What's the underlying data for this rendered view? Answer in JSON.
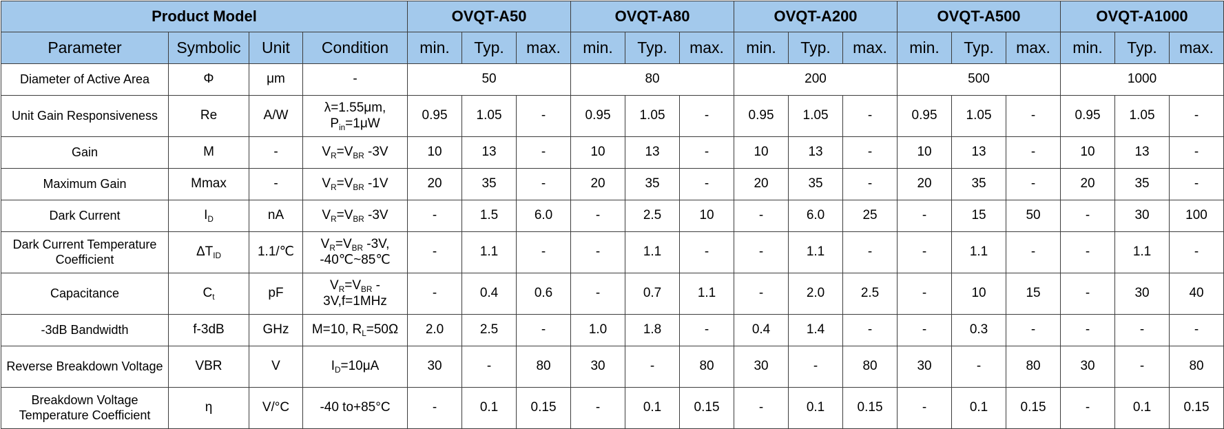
{
  "header": {
    "product_model_label": "Product Model",
    "models": [
      "OVQT-A50",
      "OVQT-A80",
      "OVQT-A200",
      "OVQT-A500",
      "OVQT-A1000"
    ],
    "parameter_label": "Parameter",
    "symbolic_label": "Symbolic",
    "unit_label": "Unit",
    "condition_label": "Condition",
    "sub_columns": [
      "min.",
      "Typ.",
      "max."
    ]
  },
  "rows": [
    {
      "parameter": "Diameter of Active Area",
      "symbol": [
        {
          "t": "Φ"
        }
      ],
      "unit": "μm",
      "condition": [
        [
          {
            "t": "-"
          }
        ]
      ],
      "merged": [
        "50",
        "80",
        "200",
        "500",
        "1000"
      ],
      "tall": false
    },
    {
      "parameter": "Unit Gain Responsiveness",
      "symbol": [
        {
          "t": "Re"
        }
      ],
      "unit": "A/W",
      "condition": [
        [
          {
            "t": "λ=1.55μm,"
          }
        ],
        [
          {
            "t": "P"
          },
          {
            "s": "in"
          },
          {
            "t": "=1μW"
          }
        ]
      ],
      "values": [
        "0.95",
        "1.05",
        "-",
        "0.95",
        "1.05",
        "-",
        "0.95",
        "1.05",
        "-",
        "0.95",
        "1.05",
        "-",
        "0.95",
        "1.05",
        "-"
      ],
      "tall": true
    },
    {
      "parameter": "Gain",
      "symbol": [
        {
          "t": "M"
        }
      ],
      "unit": "-",
      "condition": [
        [
          {
            "t": "V"
          },
          {
            "s": "R"
          },
          {
            "t": "=V"
          },
          {
            "s": "BR"
          },
          {
            "t": " -3V"
          }
        ]
      ],
      "values": [
        "10",
        "13",
        "-",
        "10",
        "13",
        "-",
        "10",
        "13",
        "-",
        "10",
        "13",
        "-",
        "10",
        "13",
        "-"
      ],
      "tall": false
    },
    {
      "parameter": "Maximum Gain",
      "symbol": [
        {
          "t": "Mmax"
        }
      ],
      "unit": "-",
      "condition": [
        [
          {
            "t": "V"
          },
          {
            "s": "R"
          },
          {
            "t": "=V"
          },
          {
            "s": "BR"
          },
          {
            "t": " -1V"
          }
        ]
      ],
      "values": [
        "20",
        "35",
        "-",
        "20",
        "35",
        "-",
        "20",
        "35",
        "-",
        "20",
        "35",
        "-",
        "20",
        "35",
        "-"
      ],
      "tall": false
    },
    {
      "parameter": "Dark Current",
      "symbol": [
        {
          "t": "I"
        },
        {
          "s": "D"
        }
      ],
      "unit": "nA",
      "condition": [
        [
          {
            "t": "V"
          },
          {
            "s": "R"
          },
          {
            "t": "=V"
          },
          {
            "s": "BR"
          },
          {
            "t": " -3V"
          }
        ]
      ],
      "values": [
        "-",
        "1.5",
        "6.0",
        "-",
        "2.5",
        "10",
        "-",
        "6.0",
        "25",
        "-",
        "15",
        "50",
        "-",
        "30",
        "100"
      ],
      "tall": false
    },
    {
      "parameter": "Dark Current Temperature Coefficient",
      "symbol": [
        {
          "t": "ΔT"
        },
        {
          "s": "ID"
        }
      ],
      "unit": "1.1/℃",
      "condition": [
        [
          {
            "t": "V"
          },
          {
            "s": "R"
          },
          {
            "t": "=V"
          },
          {
            "s": "BR"
          },
          {
            "t": " -3V,"
          }
        ],
        [
          {
            "t": "-40℃~85℃"
          }
        ]
      ],
      "values": [
        "-",
        "1.1",
        "-",
        "-",
        "1.1",
        "-",
        "-",
        "1.1",
        "-",
        "-",
        "1.1",
        "-",
        "-",
        "1.1",
        "-"
      ],
      "tall": true
    },
    {
      "parameter": "Capacitance",
      "symbol": [
        {
          "t": "C"
        },
        {
          "s": "t"
        }
      ],
      "unit": "pF",
      "condition": [
        [
          {
            "t": "V"
          },
          {
            "s": "R"
          },
          {
            "t": "=V"
          },
          {
            "s": "BR"
          },
          {
            "t": " -"
          }
        ],
        [
          {
            "t": "3V,f=1MHz"
          }
        ]
      ],
      "values": [
        "-",
        "0.4",
        "0.6",
        "-",
        "0.7",
        "1.1",
        "-",
        "2.0",
        "2.5",
        "-",
        "10",
        "15",
        "-",
        "30",
        "40"
      ],
      "tall": true
    },
    {
      "parameter": "-3dB Bandwidth",
      "symbol": [
        {
          "t": "f-3dB"
        }
      ],
      "unit": "GHz",
      "condition": [
        [
          {
            "t": "M=10, R"
          },
          {
            "s": "L"
          },
          {
            "t": "=50Ω"
          }
        ]
      ],
      "values": [
        "2.0",
        "2.5",
        "-",
        "1.0",
        "1.8",
        "-",
        "0.4",
        "1.4",
        "-",
        "-",
        "0.3",
        "-",
        "-",
        "-",
        "-"
      ],
      "tall": false
    },
    {
      "parameter": "Reverse Breakdown Voltage",
      "symbol": [
        {
          "t": "VBR"
        }
      ],
      "unit": "V",
      "condition": [
        [
          {
            "t": "I"
          },
          {
            "s": "D"
          },
          {
            "t": "=10μA"
          }
        ]
      ],
      "values": [
        "30",
        "-",
        "80",
        "30",
        "-",
        "80",
        "30",
        "-",
        "80",
        "30",
        "-",
        "80",
        "30",
        "-",
        "80"
      ],
      "tall": true
    },
    {
      "parameter": "Breakdown Voltage Temperature Coefficient",
      "symbol": [
        {
          "t": "η"
        }
      ],
      "unit": "V/°C",
      "condition": [
        [
          {
            "t": "-40 to+85°C"
          }
        ]
      ],
      "values": [
        "-",
        "0.1",
        "0.15",
        "-",
        "0.1",
        "0.15",
        "-",
        "0.1",
        "0.15",
        "-",
        "0.1",
        "0.15",
        "-",
        "0.1",
        "0.15"
      ],
      "tall": true
    }
  ]
}
